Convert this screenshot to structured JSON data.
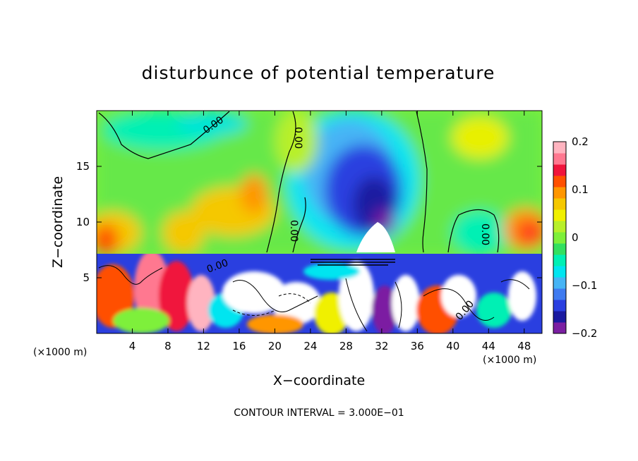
{
  "chart_data": {
    "type": "heatmap",
    "title": "disturbunce of potential temperature",
    "xlabel": "X−coordinate",
    "ylabel": "Z−coordinate",
    "x_unit_left": "(×1000 m)",
    "x_unit_right": "(×1000 m)",
    "xlim": [
      0,
      50
    ],
    "ylim": [
      0,
      20
    ],
    "xticks": [
      4,
      8,
      12,
      16,
      20,
      24,
      28,
      32,
      36,
      40,
      44,
      48
    ],
    "xtick_labels": [
      "4",
      "8",
      "12",
      "16",
      "20",
      "24",
      "28",
      "32",
      "36",
      "40",
      "44",
      "48"
    ],
    "yticks": [
      5,
      10,
      15
    ],
    "ytick_labels": [
      "5",
      "10",
      "15"
    ],
    "colorbar": {
      "min": -0.2,
      "max": 0.2,
      "ticks": [
        0.2,
        0.1,
        0,
        -0.1,
        -0.2
      ],
      "tick_labels": [
        "0.2",
        "0.1",
        "0",
        "−0.1",
        "−0.2"
      ],
      "colors": [
        "#7b1fa2",
        "#1a1aa0",
        "#2a3fe0",
        "#3f7bf0",
        "#46b4f5",
        "#00e5f0",
        "#00f0b4",
        "#33e060",
        "#7ef03a",
        "#b8f02a",
        "#f0f000",
        "#f5c800",
        "#ff9600",
        "#ff5000",
        "#f0143c",
        "#ff7890",
        "#ffb4c0"
      ]
    },
    "contour_labels": [
      "0.00",
      "0.00",
      "0.00",
      "0.00",
      "0.00",
      "0.00"
    ],
    "contour_interval_text": "CONTOUR INTERVAL = 3.000E−01",
    "grid": false,
    "legend_position": "right (colorbar)"
  }
}
